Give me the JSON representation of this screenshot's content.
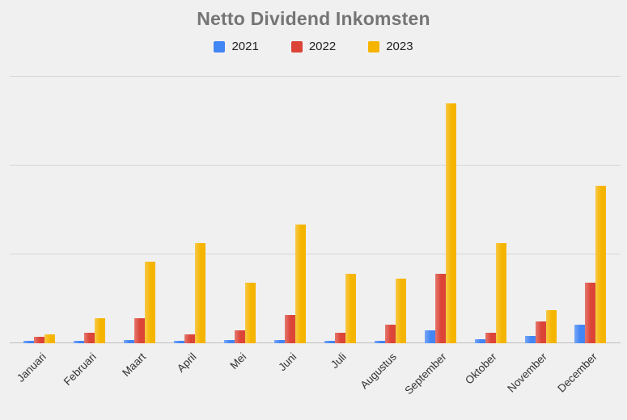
{
  "title": "Netto Dividend Inkomsten",
  "colors": {
    "background": "#F0F0F0",
    "gridline": "#D6D6D6",
    "baseline": "#BDBDBD",
    "title_text": "#757575",
    "axis_text": "#333333",
    "series_2021": "#4285F4",
    "series_2022": "#DB4437",
    "series_2023": "#F5B400"
  },
  "chart_data": {
    "type": "bar",
    "title": "Netto Dividend Inkomsten",
    "xlabel": "",
    "ylabel": "",
    "grid": true,
    "legend_position": "top",
    "ylim": [
      0,
      300
    ],
    "yticks": [
      0,
      100,
      200,
      300
    ],
    "categories": [
      "Januari",
      "Februari",
      "Maart",
      "April",
      "Mei",
      "Juni",
      "Juli",
      "Augustus",
      "September",
      "Oktober",
      "November",
      "December"
    ],
    "series": [
      {
        "name": "2021",
        "color": "#4285F4",
        "values": [
          3,
          3,
          4,
          3,
          4,
          4,
          3,
          3,
          15,
          5,
          8,
          21
        ]
      },
      {
        "name": "2022",
        "color": "#DB4437",
        "values": [
          7,
          12,
          28,
          10,
          15,
          32,
          12,
          21,
          78,
          12,
          25,
          68
        ]
      },
      {
        "name": "2023",
        "color": "#F5B400",
        "values": [
          10,
          28,
          92,
          113,
          68,
          134,
          78,
          73,
          270,
          113,
          37,
          177
        ]
      }
    ]
  }
}
